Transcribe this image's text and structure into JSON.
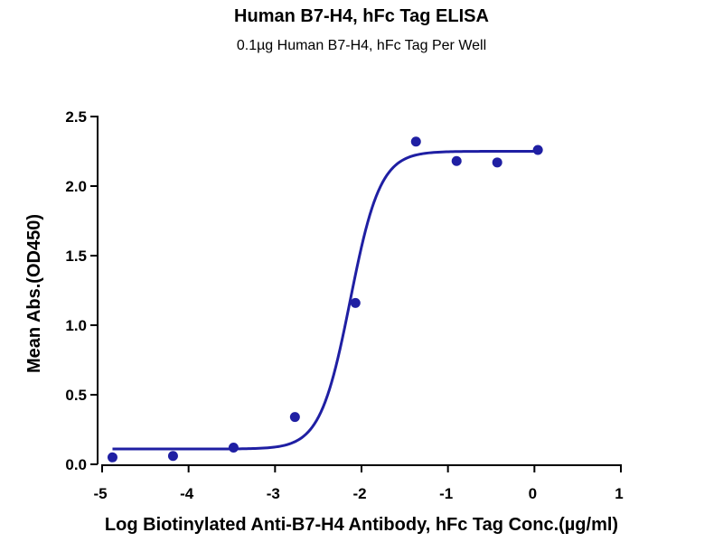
{
  "chart_data": {
    "type": "scatter",
    "title": "Human B7-H4, hFc Tag ELISA",
    "subtitle": "0.1µg Human B7-H4, hFc Tag Per Well",
    "xlabel": "Log Biotinylated Anti-B7-H4 Antibody, hFc Tag Conc.(µg/ml)",
    "ylabel": "Mean Abs.(OD450)",
    "xlim": [
      -5,
      1
    ],
    "ylim": [
      0,
      2.5
    ],
    "x_ticks": [
      -5,
      -4,
      -3,
      -2,
      -1,
      0,
      1
    ],
    "x_tick_labels": [
      "-5",
      "-4",
      "-3",
      "-2",
      "-1",
      "0",
      "1"
    ],
    "y_ticks": [
      0,
      0.5,
      1.0,
      1.5,
      2.0,
      2.5
    ],
    "y_tick_labels": [
      "0.0",
      "0.5",
      "1.0",
      "1.5",
      "2.0",
      "2.5"
    ],
    "grid": false,
    "legend": "none",
    "color": "#1f1fa3",
    "series": [
      {
        "points": [
          {
            "x": -4.88,
            "y": 0.05
          },
          {
            "x": -4.18,
            "y": 0.06
          },
          {
            "x": -3.48,
            "y": 0.12
          },
          {
            "x": -2.77,
            "y": 0.34
          },
          {
            "x": -2.07,
            "y": 1.16
          },
          {
            "x": -1.37,
            "y": 2.32
          },
          {
            "x": -0.9,
            "y": 2.18
          },
          {
            "x": -0.43,
            "y": 2.17
          },
          {
            "x": 0.04,
            "y": 2.26
          }
        ],
        "fit": {
          "model": "4PL",
          "bottom": 0.11,
          "top": 2.25,
          "logEC50": -2.13,
          "hill": 2.5,
          "x_range": [
            -4.88,
            0.04
          ]
        }
      }
    ]
  }
}
